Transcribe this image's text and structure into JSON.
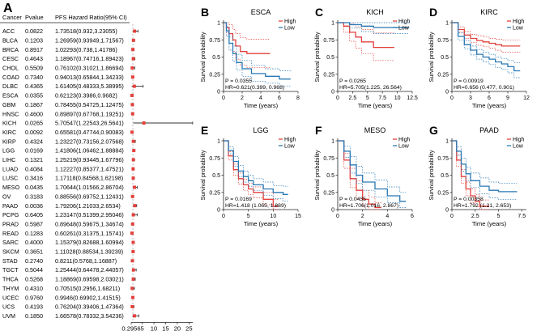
{
  "panel_letters": [
    "A",
    "B",
    "C",
    "D",
    "E",
    "F",
    "G"
  ],
  "chart_data": [
    {
      "type": "forest",
      "panel": "A",
      "headers": [
        "Cancer",
        "Pvalue",
        "PFS Hazard Ratio(95% CI)"
      ],
      "rows": [
        {
          "cancer": "ACC",
          "pvalue": "0.0822",
          "hr_text": "1.73518(0.932,3.23055)",
          "hr": 1.735,
          "lo": 0.932,
          "hi": 3.231
        },
        {
          "cancer": "BLCA",
          "pvalue": "0.1203",
          "hr_text": "1.26959(0.93949,1.71567)",
          "hr": 1.27,
          "lo": 0.939,
          "hi": 1.716
        },
        {
          "cancer": "BRCA",
          "pvalue": "0.8917",
          "hr_text": "1.02293(0.738,1.41786)",
          "hr": 1.023,
          "lo": 0.738,
          "hi": 1.418
        },
        {
          "cancer": "CESC",
          "pvalue": "0.4643",
          "hr_text": "1.18967(0.74716,1.89423)",
          "hr": 1.19,
          "lo": 0.747,
          "hi": 1.894
        },
        {
          "cancer": "CHOL",
          "pvalue": "0.5509",
          "hr_text": "0.76102(0.31021,1.86694)",
          "hr": 0.761,
          "lo": 0.31,
          "hi": 1.867
        },
        {
          "cancer": "COAD",
          "pvalue": "0.7340",
          "hr_text": "0.94013(0.65844,1.34233)",
          "hr": 0.94,
          "lo": 0.658,
          "hi": 1.342
        },
        {
          "cancer": "DLBC",
          "pvalue": "0.4365",
          "hr_text": "1.61405(0.48333,5.38995)",
          "hr": 1.614,
          "lo": 0.483,
          "hi": 5.39
        },
        {
          "cancer": "ESCA",
          "pvalue": "0.0355",
          "hr_text": "0.62123(0.3986,0.9682)",
          "hr": 0.621,
          "lo": 0.399,
          "hi": 0.968
        },
        {
          "cancer": "GBM",
          "pvalue": "0.1867",
          "hr_text": "0.78455(0.54725,1.12475)",
          "hr": 0.785,
          "lo": 0.547,
          "hi": 1.125
        },
        {
          "cancer": "HNSC",
          "pvalue": "0.4600",
          "hr_text": "0.89897(0.67768,1.19251)",
          "hr": 0.899,
          "lo": 0.678,
          "hi": 1.193
        },
        {
          "cancer": "KICH",
          "pvalue": "0.0265",
          "hr_text": "5.70547(1.22543,26.5641)",
          "hr": 5.705,
          "lo": 1.225,
          "hi": 26.564
        },
        {
          "cancer": "KIRC",
          "pvalue": "0.0092",
          "hr_text": "0.65581(0.47744,0.90083)",
          "hr": 0.656,
          "lo": 0.477,
          "hi": 0.901
        },
        {
          "cancer": "KIRP",
          "pvalue": "0.4324",
          "hr_text": "1.23227(0.73156,2.07568)",
          "hr": 1.232,
          "lo": 0.732,
          "hi": 2.076
        },
        {
          "cancer": "LGG",
          "pvalue": "0.0169",
          "hr_text": "1.41806(1.06462,1.88884)",
          "hr": 1.418,
          "lo": 1.065,
          "hi": 1.889
        },
        {
          "cancer": "LIHC",
          "pvalue": "0.1321",
          "hr_text": "1.25219(0.93445,1.67796)",
          "hr": 1.252,
          "lo": 0.934,
          "hi": 1.678
        },
        {
          "cancer": "LUAD",
          "pvalue": "0.4084",
          "hr_text": "1.12227(0.85377,1.47521)",
          "hr": 1.122,
          "lo": 0.854,
          "hi": 1.475
        },
        {
          "cancer": "LUSC",
          "pvalue": "0.3416",
          "hr_text": "1.17118(0.84568,1.62198)",
          "hr": 1.171,
          "lo": 0.846,
          "hi": 1.622
        },
        {
          "cancer": "MESO",
          "pvalue": "0.0435",
          "hr_text": "1.70644(1.01566,2.86704)",
          "hr": 1.706,
          "lo": 1.016,
          "hi": 2.867
        },
        {
          "cancer": "OV",
          "pvalue": "0.3183",
          "hr_text": "0.88556(0.69752,1.12431)",
          "hr": 0.886,
          "lo": 0.698,
          "hi": 1.124
        },
        {
          "cancer": "PAAD",
          "pvalue": "0.0036",
          "hr_text": "1.79206(1.21033,2.6534)",
          "hr": 1.792,
          "lo": 1.21,
          "hi": 2.653
        },
        {
          "cancer": "PCPG",
          "pvalue": "0.6405",
          "hr_text": "1.23147(0.51399,2.95046)",
          "hr": 1.231,
          "lo": 0.514,
          "hi": 2.95
        },
        {
          "cancer": "PRAD",
          "pvalue": "0.5987",
          "hr_text": "0.89648(0.59675,1.34674)",
          "hr": 0.896,
          "lo": 0.597,
          "hi": 1.347
        },
        {
          "cancer": "READ",
          "pvalue": "0.1283",
          "hr_text": "0.60261(0.31375,1.15741)",
          "hr": 0.603,
          "lo": 0.314,
          "hi": 1.157
        },
        {
          "cancer": "SARC",
          "pvalue": "0.4000",
          "hr_text": "1.15379(0.82688,1.60994)",
          "hr": 1.154,
          "lo": 0.827,
          "hi": 1.61
        },
        {
          "cancer": "SKCM",
          "pvalue": "0.3651",
          "hr_text": "1.11028(0.88534,1.39239)",
          "hr": 1.11,
          "lo": 0.885,
          "hi": 1.392
        },
        {
          "cancer": "STAD",
          "pvalue": "0.2740",
          "hr_text": "0.8211(0.5768,1.16887)",
          "hr": 0.821,
          "lo": 0.577,
          "hi": 1.169
        },
        {
          "cancer": "TGCT",
          "pvalue": "0.5044",
          "hr_text": "1.25444(0.64478,2.44057)",
          "hr": 1.254,
          "lo": 0.645,
          "hi": 2.441
        },
        {
          "cancer": "THCA",
          "pvalue": "0.5268",
          "hr_text": "1.18869(0.69598,2.03021)",
          "hr": 1.189,
          "lo": 0.696,
          "hi": 2.03
        },
        {
          "cancer": "THYM",
          "pvalue": "0.4310",
          "hr_text": "0.70515(0.2956,1.68211)",
          "hr": 0.705,
          "lo": 0.296,
          "hi": 1.682
        },
        {
          "cancer": "UCEC",
          "pvalue": "0.9760",
          "hr_text": "0.9946(0.69902,1.41515)",
          "hr": 0.995,
          "lo": 0.699,
          "hi": 1.415
        },
        {
          "cancer": "UCS",
          "pvalue": "0.4193",
          "hr_text": "0.76204(0.39406,1.47364)",
          "hr": 0.762,
          "lo": 0.394,
          "hi": 1.474
        },
        {
          "cancer": "UVM",
          "pvalue": "0.1850",
          "hr_text": "1.66578(0.78332,3.54236)",
          "hr": 1.666,
          "lo": 0.783,
          "hi": 3.542
        }
      ],
      "x_ticks": [
        "0.2956",
        "5",
        "10",
        "15",
        "20",
        "25"
      ],
      "x_tick_values": [
        0.2956,
        5,
        10,
        15,
        20,
        25
      ],
      "xlim": [
        0.2956,
        26.6
      ]
    },
    {
      "type": "km",
      "panel": "B",
      "title": "ESCA",
      "xlabel": "Time (years)",
      "ylabel": "Survival probability",
      "xlim": [
        0,
        8
      ],
      "x_ticks": [
        0,
        2,
        4,
        6,
        8
      ],
      "y_ticks": [
        0,
        0.25,
        0.5,
        0.75,
        1
      ],
      "legend": [
        "High",
        "Low"
      ],
      "annotation": [
        "P = 0.0355",
        "HR=0.621(0.399, 0.968)"
      ],
      "series": [
        {
          "name": "High",
          "x": [
            0,
            0.3,
            0.6,
            1.0,
            1.3,
            1.8,
            2.5,
            4.0,
            5.0
          ],
          "y": [
            1,
            0.93,
            0.84,
            0.75,
            0.66,
            0.58,
            0.55,
            0.55,
            0.55
          ],
          "upper": [
            1,
            1,
            0.97,
            0.9,
            0.84,
            0.78,
            0.76,
            0.76,
            0.76
          ],
          "lower": [
            1,
            0.85,
            0.7,
            0.58,
            0.47,
            0.38,
            0.35,
            0.35,
            0.35
          ]
        },
        {
          "name": "Low",
          "x": [
            0,
            0.3,
            0.6,
            1.0,
            1.4,
            2.0,
            3.0,
            4.5,
            6.0,
            7.2
          ],
          "y": [
            1,
            0.88,
            0.7,
            0.55,
            0.42,
            0.33,
            0.26,
            0.22,
            0.18,
            0.18
          ],
          "upper": [
            1,
            0.94,
            0.8,
            0.66,
            0.54,
            0.45,
            0.38,
            0.33,
            0.3,
            0.3
          ],
          "lower": [
            1,
            0.8,
            0.6,
            0.44,
            0.31,
            0.22,
            0.15,
            0.12,
            0.08,
            0.08
          ]
        }
      ]
    },
    {
      "type": "km",
      "panel": "C",
      "title": "KICH",
      "xlabel": "Time (years)",
      "ylabel": "Survival probability",
      "xlim": [
        0,
        12.5
      ],
      "x_ticks": [
        0,
        2.5,
        5,
        7.5,
        10,
        12.5
      ],
      "y_ticks": [
        0,
        0.25,
        0.5,
        0.75,
        1
      ],
      "legend": [
        "High",
        "Low"
      ],
      "annotation": [
        "P = 0.0265",
        "HR=5.705(1.225, 26.564)"
      ],
      "series": [
        {
          "name": "High",
          "x": [
            0,
            1.0,
            2.0,
            3.0,
            4.0,
            6.0,
            8.0,
            9.5
          ],
          "y": [
            1,
            0.95,
            0.86,
            0.79,
            0.72,
            0.64,
            0.64,
            0.64
          ],
          "upper": [
            1,
            1,
            0.98,
            0.94,
            0.9,
            0.85,
            0.85,
            0.85
          ],
          "lower": [
            1,
            0.86,
            0.73,
            0.63,
            0.55,
            0.45,
            0.45,
            0.45
          ]
        },
        {
          "name": "Low",
          "x": [
            0,
            2.0,
            4.0,
            6.0,
            8.0,
            10.0,
            12.0
          ],
          "y": [
            1,
            0.97,
            0.95,
            0.93,
            0.93,
            0.93,
            0.93
          ],
          "upper": [
            1,
            1,
            1,
            1,
            1,
            1,
            1
          ],
          "lower": [
            1,
            0.92,
            0.87,
            0.84,
            0.84,
            0.84,
            0.84
          ]
        }
      ]
    },
    {
      "type": "km",
      "panel": "D",
      "title": "KIRC",
      "xlabel": "Time (years)",
      "ylabel": "Survival probability",
      "xlim": [
        0,
        12
      ],
      "x_ticks": [
        0,
        3,
        6,
        9,
        12
      ],
      "y_ticks": [
        0,
        0.25,
        0.5,
        0.75,
        1
      ],
      "legend": [
        "High",
        "Low"
      ],
      "annotation": [
        "P = 0.00919",
        "HR=0.656 (0.477, 0.901)"
      ],
      "series": [
        {
          "name": "High",
          "x": [
            0,
            1,
            2,
            3,
            4,
            5,
            6,
            7,
            8,
            9,
            10,
            11
          ],
          "y": [
            1,
            0.9,
            0.82,
            0.77,
            0.74,
            0.72,
            0.7,
            0.68,
            0.66,
            0.66,
            0.66,
            0.66
          ],
          "upper": [
            1,
            0.94,
            0.87,
            0.83,
            0.81,
            0.79,
            0.77,
            0.76,
            0.75,
            0.75,
            0.75,
            0.75
          ],
          "lower": [
            1,
            0.86,
            0.77,
            0.71,
            0.67,
            0.65,
            0.63,
            0.6,
            0.57,
            0.57,
            0.57,
            0.57
          ]
        },
        {
          "name": "Low",
          "x": [
            0,
            1,
            2,
            3,
            4,
            5,
            6,
            7,
            8,
            9,
            10,
            11
          ],
          "y": [
            1,
            0.8,
            0.68,
            0.6,
            0.54,
            0.5,
            0.47,
            0.43,
            0.4,
            0.36,
            0.3,
            0.3
          ],
          "upper": [
            1,
            0.85,
            0.74,
            0.66,
            0.61,
            0.57,
            0.54,
            0.5,
            0.48,
            0.45,
            0.42,
            0.42
          ],
          "lower": [
            1,
            0.75,
            0.62,
            0.53,
            0.47,
            0.43,
            0.39,
            0.35,
            0.32,
            0.27,
            0.2,
            0.2
          ]
        }
      ]
    },
    {
      "type": "km",
      "panel": "E",
      "title": "LGG",
      "xlabel": "Time (years)",
      "ylabel": "Survival probability",
      "xlim": [
        0,
        15
      ],
      "x_ticks": [
        0,
        5,
        10,
        15
      ],
      "y_ticks": [
        0,
        0.25,
        0.5,
        0.75,
        1
      ],
      "legend": [
        "High",
        "Low"
      ],
      "annotation": [
        "P = 0.0169",
        "HR=1.418 (1.065, 1.889)"
      ],
      "series": [
        {
          "name": "High",
          "x": [
            0,
            1,
            2,
            3,
            4,
            5,
            6,
            8,
            10,
            11
          ],
          "y": [
            1,
            0.78,
            0.58,
            0.45,
            0.36,
            0.3,
            0.25,
            0.15,
            0.05,
            0.05
          ],
          "upper": [
            1,
            0.84,
            0.66,
            0.53,
            0.44,
            0.38,
            0.33,
            0.25,
            0.15,
            0.15
          ],
          "lower": [
            1,
            0.72,
            0.5,
            0.37,
            0.28,
            0.22,
            0.17,
            0.07,
            0.0,
            0.0
          ]
        },
        {
          "name": "Low",
          "x": [
            0,
            1,
            2,
            3,
            4,
            5,
            6,
            8,
            10,
            12,
            13
          ],
          "y": [
            1,
            0.86,
            0.7,
            0.56,
            0.48,
            0.42,
            0.36,
            0.3,
            0.25,
            0.22,
            0.22
          ],
          "upper": [
            1,
            0.91,
            0.77,
            0.64,
            0.56,
            0.5,
            0.45,
            0.4,
            0.35,
            0.34,
            0.34
          ],
          "lower": [
            1,
            0.81,
            0.63,
            0.48,
            0.4,
            0.34,
            0.28,
            0.21,
            0.16,
            0.12,
            0.12
          ]
        }
      ]
    },
    {
      "type": "km",
      "panel": "F",
      "title": "MESO",
      "xlabel": "Time (years)",
      "ylabel": "Survival probability",
      "xlim": [
        0,
        6
      ],
      "x_ticks": [
        0,
        2,
        4,
        6
      ],
      "y_ticks": [
        0,
        0.25,
        0.5,
        0.75,
        1
      ],
      "legend": [
        "High",
        "Low"
      ],
      "annotation": [
        "P = 0.0435",
        "HR=1.706(1.016, 2.867)"
      ],
      "series": [
        {
          "name": "High",
          "x": [
            0,
            0.5,
            1.0,
            1.5,
            2.0,
            2.5,
            3.0,
            3.5
          ],
          "y": [
            1,
            0.72,
            0.45,
            0.28,
            0.15,
            0.08,
            0.03,
            0.03
          ],
          "upper": [
            1,
            0.82,
            0.6,
            0.42,
            0.28,
            0.18,
            0.1,
            0.1
          ],
          "lower": [
            1,
            0.6,
            0.32,
            0.16,
            0.05,
            0.0,
            0.0,
            0.0
          ]
        },
        {
          "name": "Low",
          "x": [
            0,
            0.5,
            1.0,
            1.5,
            2.0,
            3.0,
            4.0,
            5.0,
            5.5
          ],
          "y": [
            1,
            0.85,
            0.65,
            0.5,
            0.4,
            0.3,
            0.2,
            0.12,
            0.12
          ],
          "upper": [
            1,
            0.92,
            0.77,
            0.63,
            0.53,
            0.43,
            0.33,
            0.25,
            0.25
          ],
          "lower": [
            1,
            0.76,
            0.53,
            0.38,
            0.28,
            0.18,
            0.1,
            0.03,
            0.03
          ]
        }
      ]
    },
    {
      "type": "km",
      "panel": "G",
      "title": "PAAD",
      "xlabel": "Time (years)",
      "ylabel": "Survival probability",
      "xlim": [
        0,
        8
      ],
      "x_ticks": [
        0,
        2.5,
        5,
        7.5
      ],
      "y_ticks": [
        0,
        0.25,
        0.5,
        0.75,
        1
      ],
      "legend": [
        "High",
        "Low"
      ],
      "annotation": [
        "P = 0.00358",
        "HR=1.792 (1.21, 2.653)"
      ],
      "series": [
        {
          "name": "High",
          "x": [
            0,
            0.5,
            1.0,
            1.5,
            2.0,
            2.5,
            3.0,
            4.0
          ],
          "y": [
            1,
            0.72,
            0.48,
            0.3,
            0.2,
            0.12,
            0.05,
            0.05
          ],
          "upper": [
            1,
            0.8,
            0.58,
            0.4,
            0.3,
            0.22,
            0.14,
            0.14
          ],
          "lower": [
            1,
            0.63,
            0.38,
            0.2,
            0.1,
            0.04,
            0.0,
            0.0
          ]
        },
        {
          "name": "Low",
          "x": [
            0,
            0.5,
            1.0,
            1.5,
            2.0,
            3.0,
            4.0,
            5.0,
            6.0,
            7.0
          ],
          "y": [
            1,
            0.85,
            0.66,
            0.52,
            0.42,
            0.34,
            0.28,
            0.26,
            0.26,
            0.26
          ],
          "upper": [
            1,
            0.91,
            0.75,
            0.62,
            0.53,
            0.46,
            0.4,
            0.38,
            0.38,
            0.38
          ],
          "lower": [
            1,
            0.78,
            0.56,
            0.42,
            0.32,
            0.23,
            0.17,
            0.15,
            0.15,
            0.15
          ]
        }
      ]
    }
  ],
  "colors": {
    "high": "#e2413c",
    "low": "#2878b4",
    "forest_point": "#e2413c",
    "forest_line": "#333333"
  }
}
